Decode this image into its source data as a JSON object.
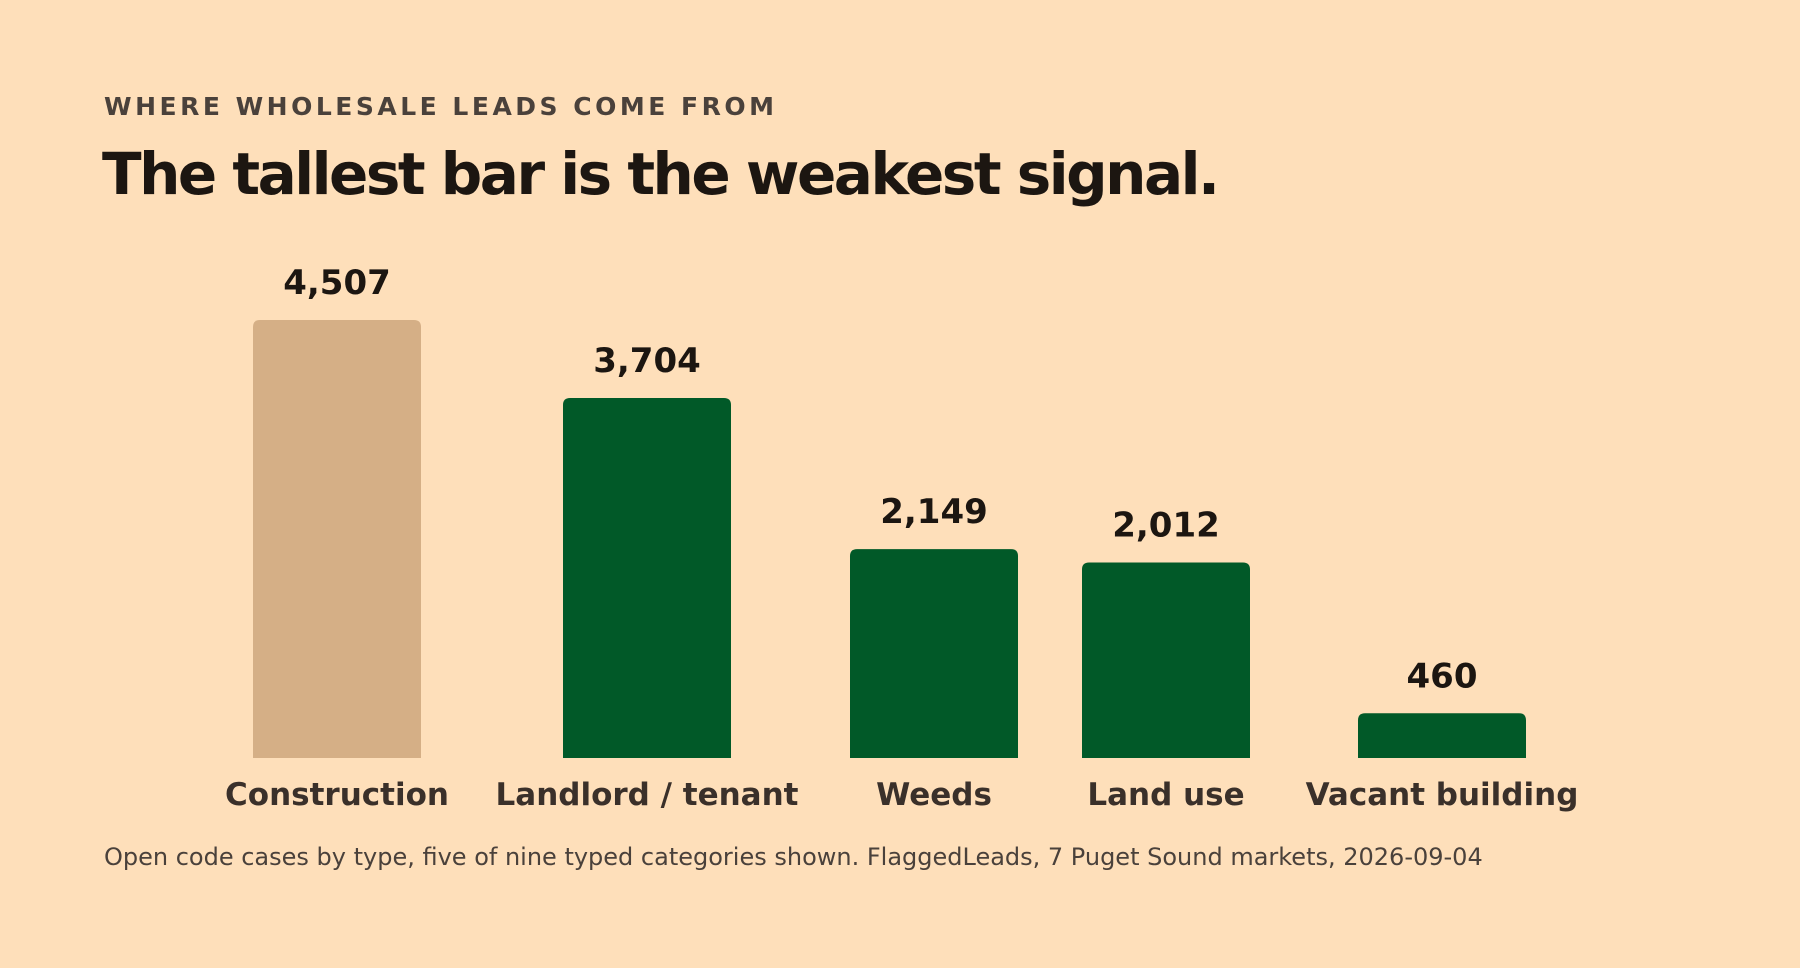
{
  "header": {
    "eyebrow": "WHERE WHOLESALE LEADS COME FROM",
    "headline": "The tallest bar is the weakest signal."
  },
  "footer": {
    "caption": "Open code cases by type, five of nine typed categories shown. FlaggedLeads, 7 Puget Sound markets, 2026-09-04"
  },
  "colors": {
    "background": "#FEDFBA",
    "highlight_bar": "#D5AF86",
    "primary_bar": "#015928",
    "text_dark": "#1C1611",
    "text_muted": "#4A413B"
  },
  "chart_data": {
    "type": "bar",
    "title": "The tallest bar is the weakest signal.",
    "subtitle": "WHERE WHOLESALE LEADS COME FROM",
    "categories": [
      "Construction",
      "Landlord / tenant",
      "Weeds",
      "Land use",
      "Vacant building"
    ],
    "values": [
      4507,
      3704,
      2149,
      2012,
      460
    ],
    "value_labels": [
      "4,507",
      "3,704",
      "2,149",
      "2,012",
      "460"
    ],
    "bar_colors": [
      "#D5AF86",
      "#015928",
      "#015928",
      "#015928",
      "#015928"
    ],
    "xlabel": "",
    "ylabel": "",
    "ylim": [
      0,
      4507
    ],
    "grid": false,
    "legend": "none"
  }
}
